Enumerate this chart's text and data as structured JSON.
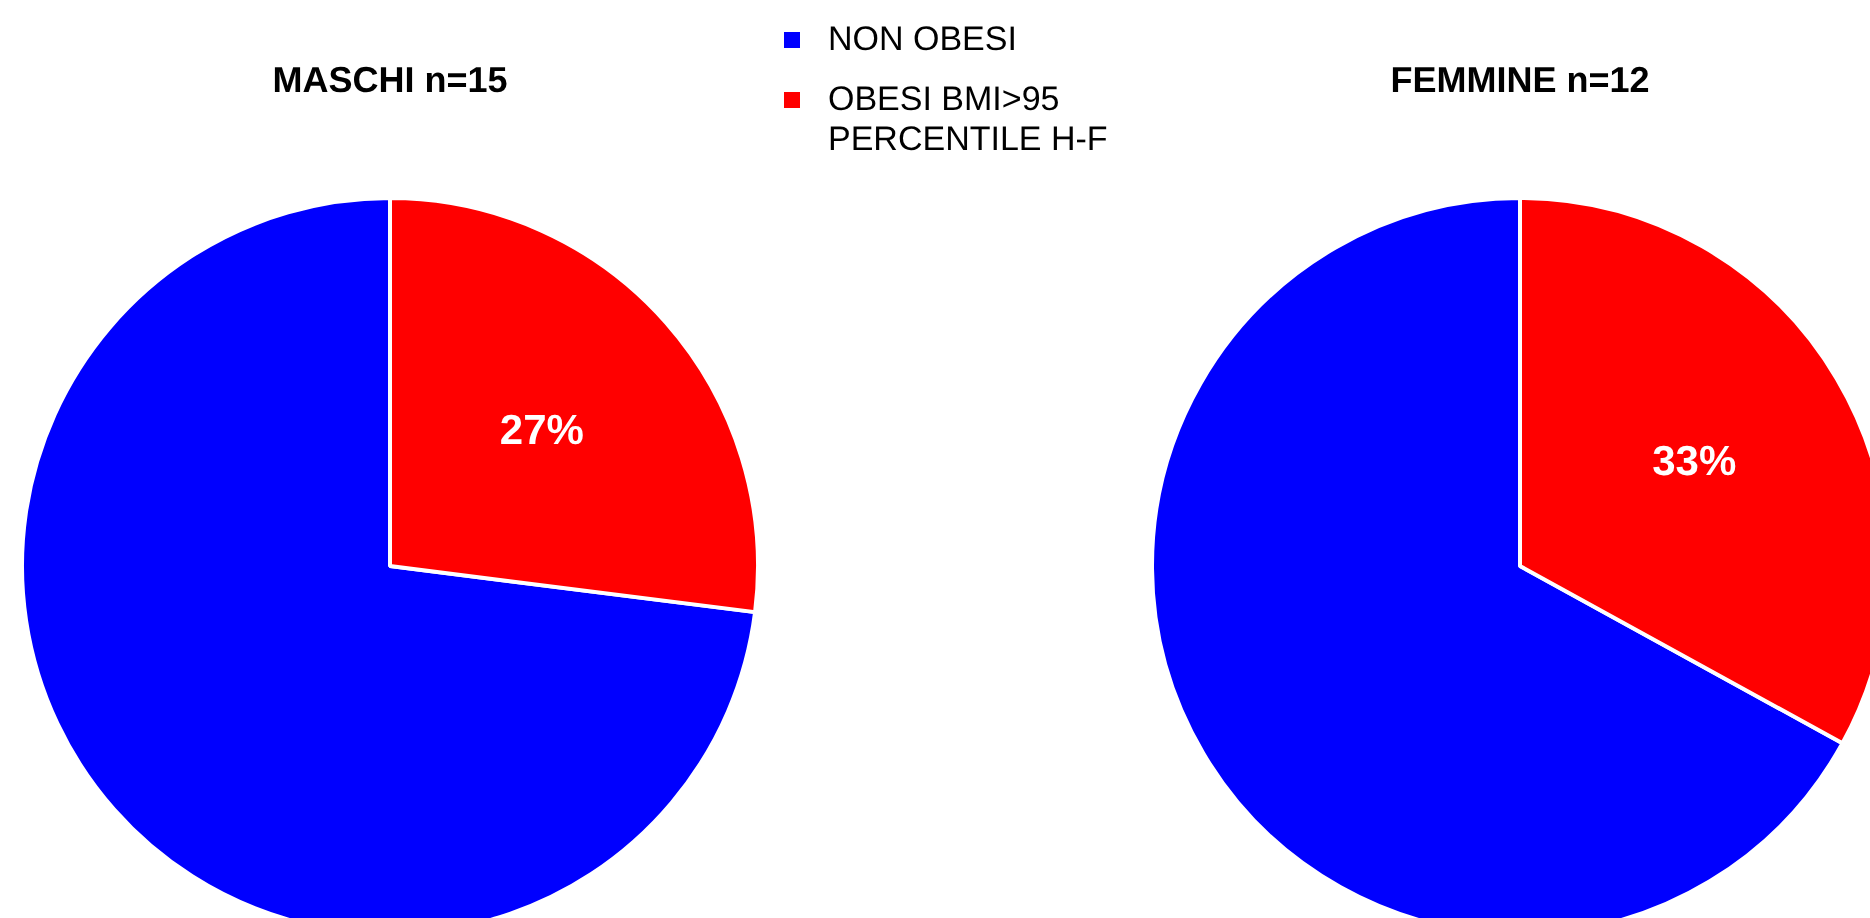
{
  "chart_data": [
    {
      "type": "pie",
      "title": "MASCHI n=15",
      "categories": [
        "NON OBESI",
        "OBESI BMI>95 PERCENTILE H-F"
      ],
      "values": [
        73,
        27
      ],
      "colors": [
        "#0000ff",
        "#ff0000"
      ],
      "value_labels": [
        null,
        "27%"
      ],
      "legend": "top right"
    },
    {
      "type": "pie",
      "title": "FEMMINE n=12",
      "categories": [
        null,
        null
      ],
      "values": [
        67,
        33
      ],
      "colors": [
        "#0000ff",
        "#ff0000"
      ],
      "value_labels": [
        null,
        "33%"
      ],
      "legend": false
    }
  ]
}
